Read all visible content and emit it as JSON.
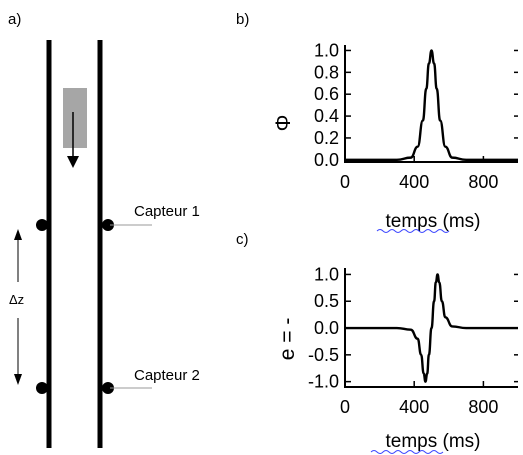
{
  "panel_a": {
    "label": "a)",
    "sensor1": "Capteur 1",
    "sensor2": "Capteur 2",
    "dz": "Δz"
  },
  "chart_data": [
    {
      "panel": "b)",
      "type": "line",
      "ylabel": "Φ",
      "xlabel": "temps (ms)",
      "xticks": [
        "0",
        "400",
        "800"
      ],
      "yticks": [
        "1.0",
        "0.8",
        "0.6",
        "0.4",
        "0.2",
        "0.0"
      ],
      "xlim": [
        0,
        1000
      ],
      "ylim": [
        -0.02,
        1.05
      ],
      "series": [
        {
          "x": [
            0,
            300,
            380,
            420,
            450,
            470,
            485,
            500,
            515,
            530,
            550,
            580,
            620,
            700,
            1000
          ],
          "values": [
            0,
            0,
            0.02,
            0.12,
            0.36,
            0.65,
            0.88,
            1.0,
            0.88,
            0.65,
            0.36,
            0.12,
            0.02,
            0,
            0
          ]
        }
      ]
    },
    {
      "panel": "c)",
      "type": "line",
      "ylabel": "e = -",
      "xlabel": "temps (ms)",
      "xticks": [
        "0",
        "400",
        "800"
      ],
      "yticks": [
        "1.0",
        "0.5",
        "0.0",
        "-0.5",
        "-1.0"
      ],
      "xlim": [
        0,
        1000
      ],
      "ylim": [
        -1.1,
        1.12
      ],
      "series": [
        {
          "x": [
            0,
            300,
            380,
            420,
            440,
            455,
            465,
            475,
            485,
            500,
            515,
            525,
            535,
            545,
            560,
            580,
            620,
            700,
            1000
          ],
          "values": [
            0,
            0,
            -0.03,
            -0.2,
            -0.5,
            -0.85,
            -1.0,
            -0.85,
            -0.5,
            0,
            0.5,
            0.85,
            1.0,
            0.85,
            0.5,
            0.2,
            0.03,
            0,
            0
          ]
        }
      ]
    }
  ]
}
